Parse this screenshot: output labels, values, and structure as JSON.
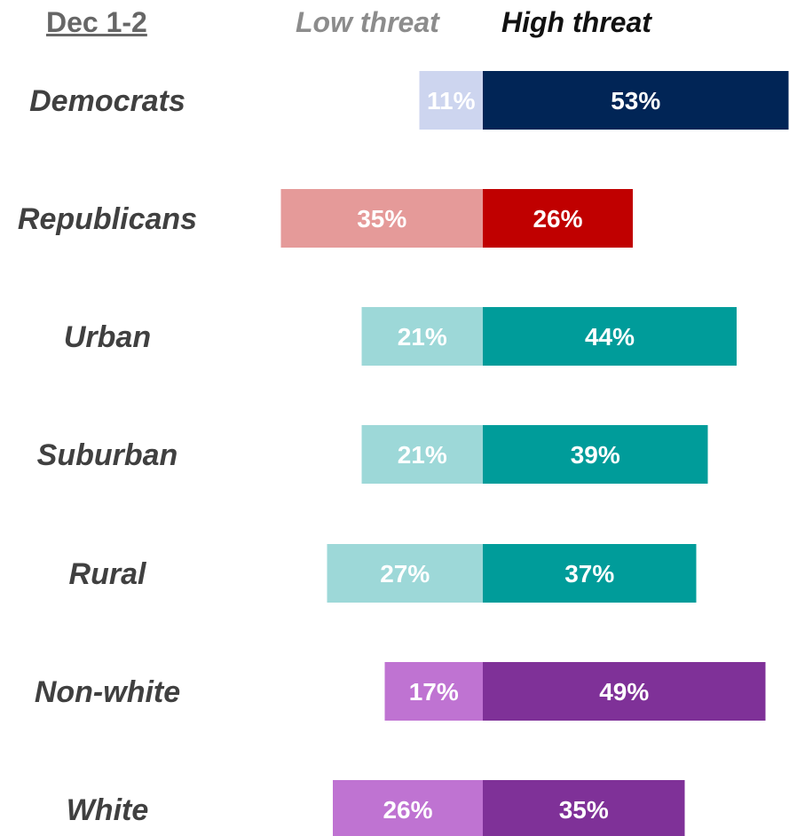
{
  "header": {
    "date_label": "Dec 1-2",
    "low_label": "Low threat",
    "high_label": "High threat"
  },
  "chart_data": {
    "type": "bar",
    "orientation": "horizontal-diverging",
    "categories": [
      "Democrats",
      "Republicans",
      "Urban",
      "Suburban",
      "Rural",
      "Non-white",
      "White"
    ],
    "series": [
      {
        "name": "Low threat",
        "values": [
          11,
          35,
          21,
          21,
          27,
          17,
          26
        ]
      },
      {
        "name": "High threat",
        "values": [
          53,
          26,
          44,
          39,
          37,
          49,
          35
        ]
      }
    ],
    "value_labels": {
      "low": [
        "11%",
        "35%",
        "21%",
        "21%",
        "27%",
        "17%",
        "26%"
      ],
      "high": [
        "53%",
        "26%",
        "44%",
        "39%",
        "37%",
        "49%",
        "35%"
      ]
    },
    "colors": {
      "low": [
        "#cdd5ef",
        "#e59a99",
        "#9dd8d8",
        "#9dd8d8",
        "#9dd8d8",
        "#bf73d2",
        "#bf73d2"
      ],
      "high": [
        "#012556",
        "#c00000",
        "#009c9a",
        "#009c9a",
        "#009c9a",
        "#7f3198",
        "#7f3198"
      ],
      "category_text": "#404040",
      "value_text": "#ffffff"
    },
    "grid": false,
    "legend": "top"
  }
}
